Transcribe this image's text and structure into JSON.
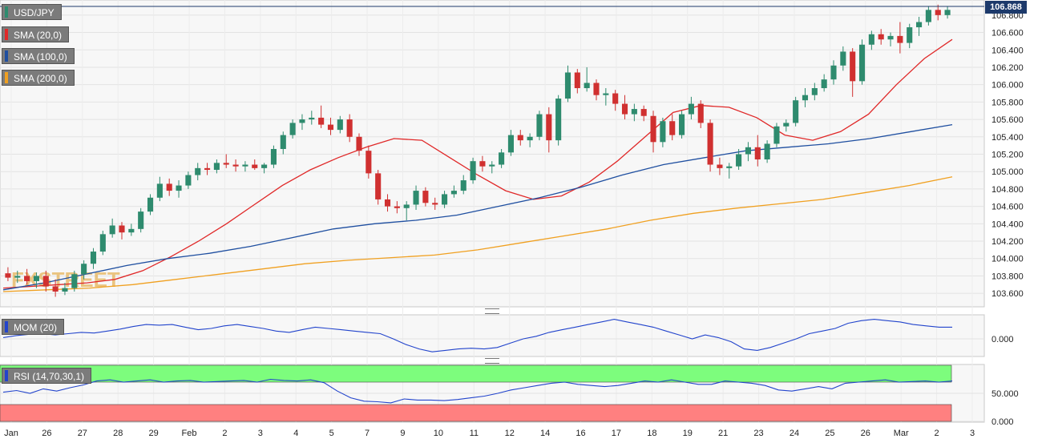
{
  "symbol": "USD/JPY",
  "last_price": "106.868",
  "indicators": {
    "sma20": "SMA (20,0)",
    "sma100": "SMA (100,0)",
    "sma200": "SMA (200,0)",
    "mom": "MOM (20)",
    "rsi": "RSI (14,70,30,1)"
  },
  "watermark": "FXSTREET",
  "colors": {
    "up": "#2e8b6e",
    "down": "#d03030",
    "sma20": "#e02828",
    "sma100": "#1f4fa0",
    "sma200": "#f0a020",
    "mom": "#2244cc",
    "rsi": "#2244cc",
    "rsi_overbought_zone": "#7dfd7d",
    "rsi_oversold_zone": "#ff8080",
    "price_badge": "#1d3a6b"
  },
  "chart_data": [
    {
      "type": "candlestick",
      "title": "USD/JPY",
      "ylim": [
        103.5,
        106.9
      ],
      "yticks": [
        "106.800",
        "106.600",
        "106.400",
        "106.200",
        "106.000",
        "105.800",
        "105.600",
        "105.400",
        "105.200",
        "105.000",
        "104.800",
        "104.600",
        "104.400",
        "104.200",
        "104.000",
        "103.800",
        "103.600"
      ],
      "xticks": [
        "Jan",
        "26",
        "27",
        "28",
        "29",
        "Feb",
        "2",
        "3",
        "4",
        "5",
        "7",
        "9",
        "10",
        "11",
        "12",
        "14",
        "16",
        "17",
        "18",
        "19",
        "21",
        "23",
        "24",
        "25",
        "26",
        "Mar",
        "2",
        "3"
      ],
      "last": 106.868,
      "candles": [
        [
          103.83,
          103.9,
          103.74,
          103.78
        ],
        [
          103.78,
          103.86,
          103.72,
          103.8
        ],
        [
          103.8,
          103.88,
          103.7,
          103.74
        ],
        [
          103.74,
          103.84,
          103.66,
          103.8
        ],
        [
          103.8,
          103.86,
          103.62,
          103.68
        ],
        [
          103.68,
          103.76,
          103.56,
          103.62
        ],
        [
          103.62,
          103.72,
          103.58,
          103.66
        ],
        [
          103.66,
          103.86,
          103.62,
          103.82
        ],
        [
          103.82,
          103.98,
          103.76,
          103.94
        ],
        [
          103.94,
          104.12,
          103.88,
          104.08
        ],
        [
          104.08,
          104.32,
          104.04,
          104.28
        ],
        [
          104.28,
          104.46,
          104.24,
          104.38
        ],
        [
          104.38,
          104.42,
          104.22,
          104.3
        ],
        [
          104.3,
          104.4,
          104.26,
          104.34
        ],
        [
          104.34,
          104.58,
          104.3,
          104.54
        ],
        [
          104.54,
          104.74,
          104.5,
          104.7
        ],
        [
          104.7,
          104.94,
          104.66,
          104.86
        ],
        [
          104.86,
          104.92,
          104.72,
          104.78
        ],
        [
          104.78,
          104.9,
          104.7,
          104.84
        ],
        [
          104.84,
          105.0,
          104.8,
          104.96
        ],
        [
          104.96,
          105.1,
          104.9,
          105.04
        ],
        [
          105.04,
          105.1,
          104.96,
          105.02
        ],
        [
          105.02,
          105.14,
          104.98,
          105.1
        ],
        [
          105.1,
          105.2,
          105.04,
          105.08
        ],
        [
          105.08,
          105.14,
          105.0,
          105.06
        ],
        [
          105.06,
          105.12,
          105.0,
          105.08
        ],
        [
          105.08,
          105.14,
          105.02,
          105.04
        ],
        [
          105.04,
          105.1,
          104.98,
          105.08
        ],
        [
          105.08,
          105.3,
          105.04,
          105.26
        ],
        [
          105.26,
          105.46,
          105.2,
          105.42
        ],
        [
          105.42,
          105.6,
          105.38,
          105.56
        ],
        [
          105.56,
          105.66,
          105.48,
          105.6
        ],
        [
          105.6,
          105.7,
          105.54,
          105.62
        ],
        [
          105.62,
          105.76,
          105.5,
          105.54
        ],
        [
          105.54,
          105.62,
          105.42,
          105.48
        ],
        [
          105.48,
          105.64,
          105.44,
          105.6
        ],
        [
          105.6,
          105.66,
          105.34,
          105.4
        ],
        [
          105.4,
          105.44,
          105.18,
          105.24
        ],
        [
          105.24,
          105.3,
          104.92,
          104.98
        ],
        [
          104.98,
          105.02,
          104.62,
          104.68
        ],
        [
          104.68,
          104.74,
          104.54,
          104.6
        ],
        [
          104.6,
          104.66,
          104.52,
          104.58
        ],
        [
          104.58,
          104.66,
          104.44,
          104.62
        ],
        [
          104.62,
          104.84,
          104.56,
          104.78
        ],
        [
          104.78,
          104.82,
          104.6,
          104.64
        ],
        [
          104.64,
          104.7,
          104.56,
          104.62
        ],
        [
          104.62,
          104.78,
          104.58,
          104.74
        ],
        [
          104.74,
          104.84,
          104.7,
          104.78
        ],
        [
          104.78,
          104.96,
          104.74,
          104.9
        ],
        [
          104.9,
          105.16,
          104.86,
          105.12
        ],
        [
          105.12,
          105.18,
          105.0,
          105.06
        ],
        [
          105.06,
          105.12,
          104.98,
          105.08
        ],
        [
          105.08,
          105.26,
          105.04,
          105.22
        ],
        [
          105.22,
          105.48,
          105.18,
          105.42
        ],
        [
          105.42,
          105.48,
          105.3,
          105.36
        ],
        [
          105.36,
          105.44,
          105.28,
          105.4
        ],
        [
          105.4,
          105.7,
          105.36,
          105.66
        ],
        [
          105.66,
          105.74,
          105.22,
          105.36
        ],
        [
          105.36,
          105.88,
          105.3,
          105.84
        ],
        [
          105.84,
          106.22,
          105.8,
          106.14
        ],
        [
          106.14,
          106.18,
          105.9,
          105.96
        ],
        [
          105.96,
          106.2,
          105.92,
          106.02
        ],
        [
          106.02,
          106.06,
          105.82,
          105.88
        ],
        [
          105.88,
          105.96,
          105.76,
          105.9
        ],
        [
          105.9,
          105.94,
          105.7,
          105.78
        ],
        [
          105.78,
          105.88,
          105.6,
          105.66
        ],
        [
          105.66,
          105.78,
          105.58,
          105.72
        ],
        [
          105.72,
          105.76,
          105.58,
          105.64
        ],
        [
          105.64,
          105.7,
          105.22,
          105.34
        ],
        [
          105.34,
          105.62,
          105.28,
          105.58
        ],
        [
          105.58,
          105.66,
          105.36,
          105.42
        ],
        [
          105.42,
          105.7,
          105.38,
          105.66
        ],
        [
          105.66,
          105.86,
          105.6,
          105.78
        ],
        [
          105.78,
          105.82,
          105.5,
          105.56
        ],
        [
          105.56,
          105.6,
          105.0,
          105.08
        ],
        [
          105.08,
          105.16,
          104.96,
          105.04
        ],
        [
          105.04,
          105.1,
          104.92,
          105.06
        ],
        [
          105.06,
          105.26,
          105.02,
          105.2
        ],
        [
          105.2,
          105.34,
          105.12,
          105.28
        ],
        [
          105.28,
          105.42,
          105.06,
          105.14
        ],
        [
          105.14,
          105.36,
          105.1,
          105.32
        ],
        [
          105.32,
          105.56,
          105.28,
          105.52
        ],
        [
          105.52,
          105.6,
          105.46,
          105.56
        ],
        [
          105.56,
          105.86,
          105.52,
          105.82
        ],
        [
          105.82,
          105.96,
          105.74,
          105.88
        ],
        [
          105.88,
          106.02,
          105.82,
          105.96
        ],
        [
          105.96,
          106.12,
          105.92,
          106.06
        ],
        [
          106.06,
          106.28,
          106.0,
          106.22
        ],
        [
          106.22,
          106.44,
          106.16,
          106.38
        ],
        [
          106.38,
          106.42,
          105.86,
          106.04
        ],
        [
          106.04,
          106.52,
          106.0,
          106.46
        ],
        [
          106.46,
          106.62,
          106.4,
          106.58
        ],
        [
          106.58,
          106.64,
          106.46,
          106.52
        ],
        [
          106.52,
          106.6,
          106.44,
          106.56
        ],
        [
          106.56,
          106.72,
          106.36,
          106.48
        ],
        [
          106.48,
          106.7,
          106.42,
          106.66
        ],
        [
          106.66,
          106.78,
          106.56,
          106.72
        ],
        [
          106.72,
          106.9,
          106.68,
          106.86
        ],
        [
          106.86,
          106.92,
          106.74,
          106.8
        ],
        [
          106.8,
          106.9,
          106.76,
          106.86
        ]
      ],
      "series": [
        {
          "name": "SMA (20,0)",
          "values": [
            103.66,
            103.68,
            103.7,
            103.72,
            103.76,
            103.86,
            104.02,
            104.2,
            104.4,
            104.62,
            104.84,
            105.02,
            105.16,
            105.28,
            105.38,
            105.36,
            105.16,
            104.96,
            104.78,
            104.68,
            104.72,
            104.88,
            105.12,
            105.4,
            105.68,
            105.76,
            105.74,
            105.62,
            105.42,
            105.36,
            105.46,
            105.66,
            106.0,
            106.3,
            106.52
          ]
        },
        {
          "name": "SMA (100,0)",
          "values": [
            103.64,
            103.72,
            103.82,
            103.92,
            104.0,
            104.06,
            104.14,
            104.24,
            104.34,
            104.4,
            104.44,
            104.5,
            104.6,
            104.7,
            104.82,
            104.96,
            105.08,
            105.16,
            105.24,
            105.28,
            105.32,
            105.38,
            105.46,
            105.54
          ]
        },
        {
          "name": "SMA (200,0)",
          "values": [
            103.62,
            103.64,
            103.66,
            103.7,
            103.76,
            103.82,
            103.88,
            103.94,
            103.98,
            104.01,
            104.04,
            104.1,
            104.18,
            104.26,
            104.34,
            104.44,
            104.52,
            104.58,
            104.63,
            104.68,
            104.76,
            104.84,
            104.94
          ]
        }
      ]
    },
    {
      "type": "line",
      "title": "MOM (20)",
      "yticks": [
        "0.000"
      ],
      "series": [
        {
          "name": "MOM (20)",
          "values": [
            0.02,
            0.05,
            0.07,
            0.08,
            0.06,
            0.08,
            0.1,
            0.09,
            0.12,
            0.15,
            0.19,
            0.22,
            0.21,
            0.22,
            0.18,
            0.14,
            0.16,
            0.2,
            0.22,
            0.19,
            0.16,
            0.12,
            0.1,
            0.14,
            0.18,
            0.16,
            0.14,
            0.12,
            0.1,
            0.08,
            0.0,
            -0.08,
            -0.14,
            -0.18,
            -0.16,
            -0.14,
            -0.13,
            -0.14,
            -0.12,
            -0.06,
            0.0,
            0.04,
            0.1,
            0.14,
            0.18,
            0.22,
            0.26,
            0.3,
            0.26,
            0.22,
            0.18,
            0.12,
            0.06,
            0.0,
            0.06,
            0.02,
            -0.04,
            -0.14,
            -0.16,
            -0.12,
            -0.06,
            0.0,
            0.08,
            0.12,
            0.16,
            0.24,
            0.28,
            0.3,
            0.28,
            0.26,
            0.22,
            0.2,
            0.18,
            0.18
          ]
        }
      ]
    },
    {
      "type": "line",
      "title": "RSI (14,70,30,1)",
      "yticks": [
        "50.000",
        "0.000"
      ],
      "zones": [
        {
          "from": 70,
          "to": 100,
          "color": "#7dfd7d"
        },
        {
          "from": 0,
          "to": 30,
          "color": "#ff8080"
        }
      ],
      "series": [
        {
          "name": "RSI (14,70,30,1)",
          "values": [
            52,
            55,
            50,
            58,
            54,
            60,
            65,
            72,
            74,
            70,
            72,
            74,
            70,
            72,
            73,
            70,
            71,
            72,
            73,
            70,
            75,
            73,
            72,
            74,
            69,
            54,
            42,
            36,
            35,
            33,
            40,
            38,
            38,
            37,
            39,
            42,
            45,
            50,
            56,
            60,
            64,
            68,
            70,
            66,
            64,
            62,
            64,
            68,
            72,
            70,
            74,
            70,
            66,
            66,
            72,
            70,
            68,
            64,
            56,
            54,
            58,
            62,
            58,
            68,
            70,
            72,
            74,
            70,
            71,
            72,
            70,
            72
          ]
        }
      ]
    }
  ]
}
